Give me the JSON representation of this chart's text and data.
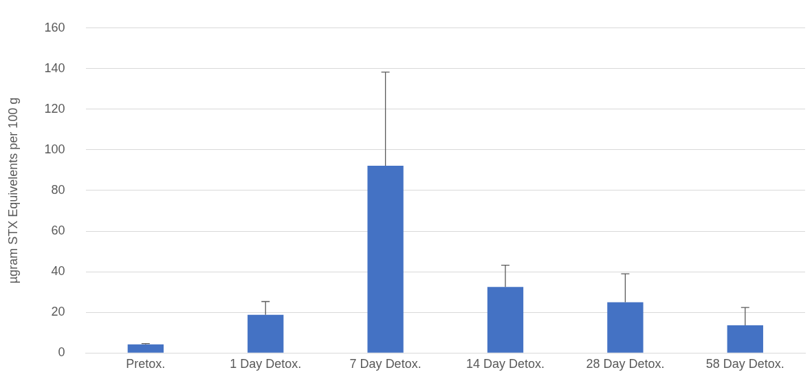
{
  "chart_data": {
    "type": "bar",
    "ylabel": "µgram STX Equivelents per 100 g",
    "categories": [
      "Pretox.",
      "1 Day Detox.",
      "7 Day Detox.",
      "14 Day Detox.",
      "28 Day Detox.",
      "58 Day Detox."
    ],
    "values": [
      4.2,
      18.8,
      92.2,
      32.5,
      25,
      13.6
    ],
    "errors": [
      [
        4.2,
        4.6
      ],
      [
        18.8,
        25.3
      ],
      [
        92.2,
        138.3
      ],
      [
        32.5,
        43.2
      ],
      [
        25,
        39
      ],
      [
        13.6,
        22.4
      ]
    ],
    "color": "#4472c4",
    "ylim": [
      0,
      160
    ],
    "yticks": [
      0,
      20,
      40,
      60,
      80,
      100,
      120,
      140,
      160
    ],
    "grid": "y",
    "legend": false
  }
}
